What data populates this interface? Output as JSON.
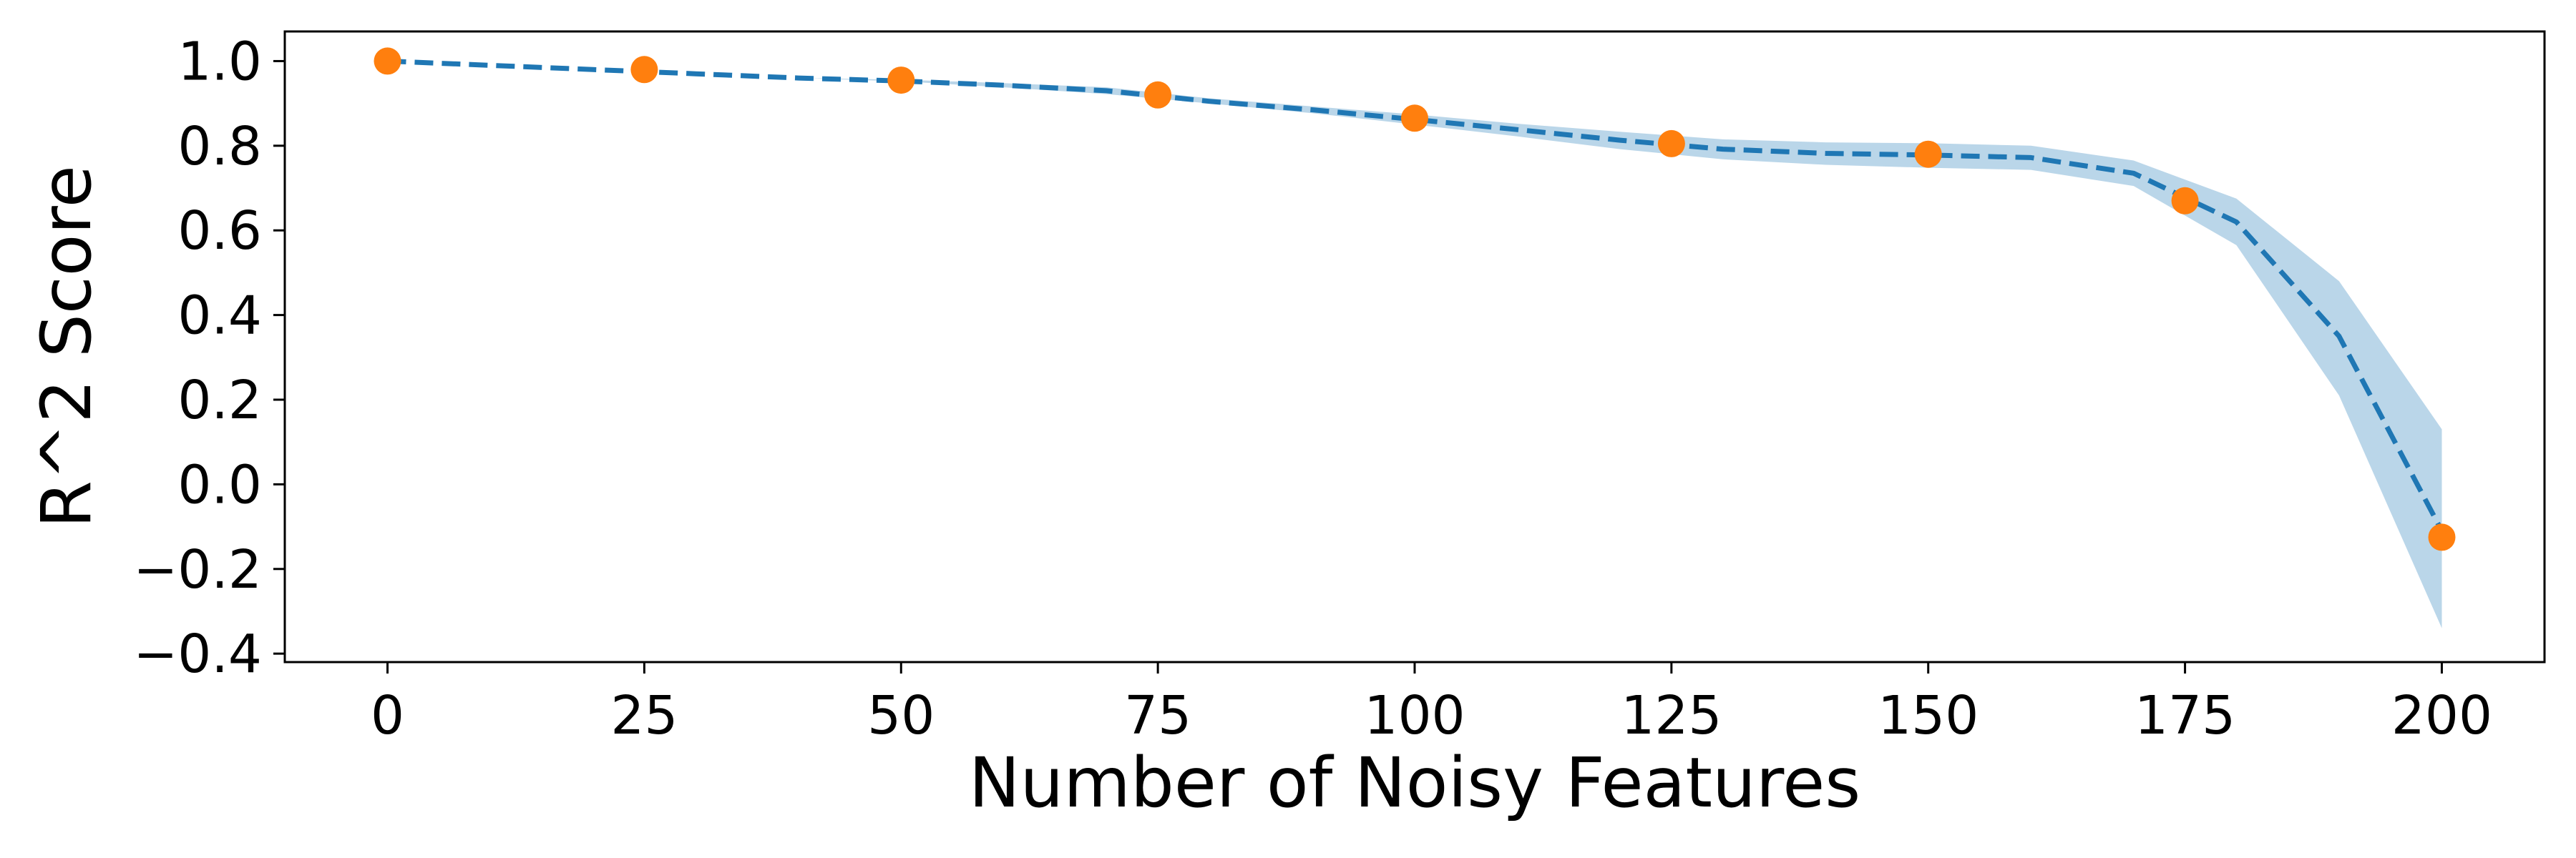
{
  "chart_data": {
    "type": "line",
    "xlabel": "Number of Noisy Features",
    "ylabel": "R^2 Score",
    "xlim": [
      -10,
      210
    ],
    "ylim": [
      -0.42,
      1.07
    ],
    "x_ticks": [
      0,
      25,
      50,
      75,
      100,
      125,
      150,
      175,
      200
    ],
    "y_ticks": [
      -0.4,
      -0.2,
      0.0,
      0.2,
      0.4,
      0.6,
      0.8,
      1.0
    ],
    "x_tick_labels": [
      "0",
      "25",
      "50",
      "75",
      "100",
      "125",
      "150",
      "175",
      "200"
    ],
    "y_tick_labels": [
      "−0.4",
      "−0.2",
      "0.0",
      "0.2",
      "0.4",
      "0.6",
      "0.8",
      "1.0"
    ],
    "grid": false,
    "series": [
      {
        "kind": "scatter",
        "color": "#ff7f0e",
        "x": [
          0,
          25,
          50,
          75,
          100,
          125,
          150,
          175,
          200
        ],
        "y": [
          1.0,
          0.98,
          0.955,
          0.92,
          0.865,
          0.805,
          0.78,
          0.67,
          -0.125
        ]
      },
      {
        "kind": "fit-line",
        "style": "dashed",
        "color": "#1f77b4",
        "x": [
          0,
          10,
          20,
          30,
          40,
          50,
          60,
          70,
          80,
          90,
          100,
          110,
          120,
          130,
          140,
          150,
          160,
          170,
          180,
          190,
          200
        ],
        "y": [
          1.0,
          0.99,
          0.98,
          0.97,
          0.96,
          0.953,
          0.943,
          0.93,
          0.905,
          0.885,
          0.862,
          0.838,
          0.813,
          0.792,
          0.782,
          0.778,
          0.772,
          0.735,
          0.62,
          0.35,
          -0.11
        ],
        "band_lower": [
          1.0,
          0.99,
          0.98,
          0.97,
          0.96,
          0.952,
          0.938,
          0.922,
          0.9,
          0.877,
          0.85,
          0.822,
          0.792,
          0.768,
          0.755,
          0.748,
          0.743,
          0.705,
          0.565,
          0.21,
          -0.34
        ],
        "band_upper": [
          1.0,
          0.99,
          0.98,
          0.97,
          0.96,
          0.956,
          0.948,
          0.938,
          0.912,
          0.893,
          0.874,
          0.852,
          0.833,
          0.815,
          0.808,
          0.806,
          0.8,
          0.765,
          0.675,
          0.48,
          0.13
        ],
        "band_color": "#a6cae3"
      }
    ]
  }
}
